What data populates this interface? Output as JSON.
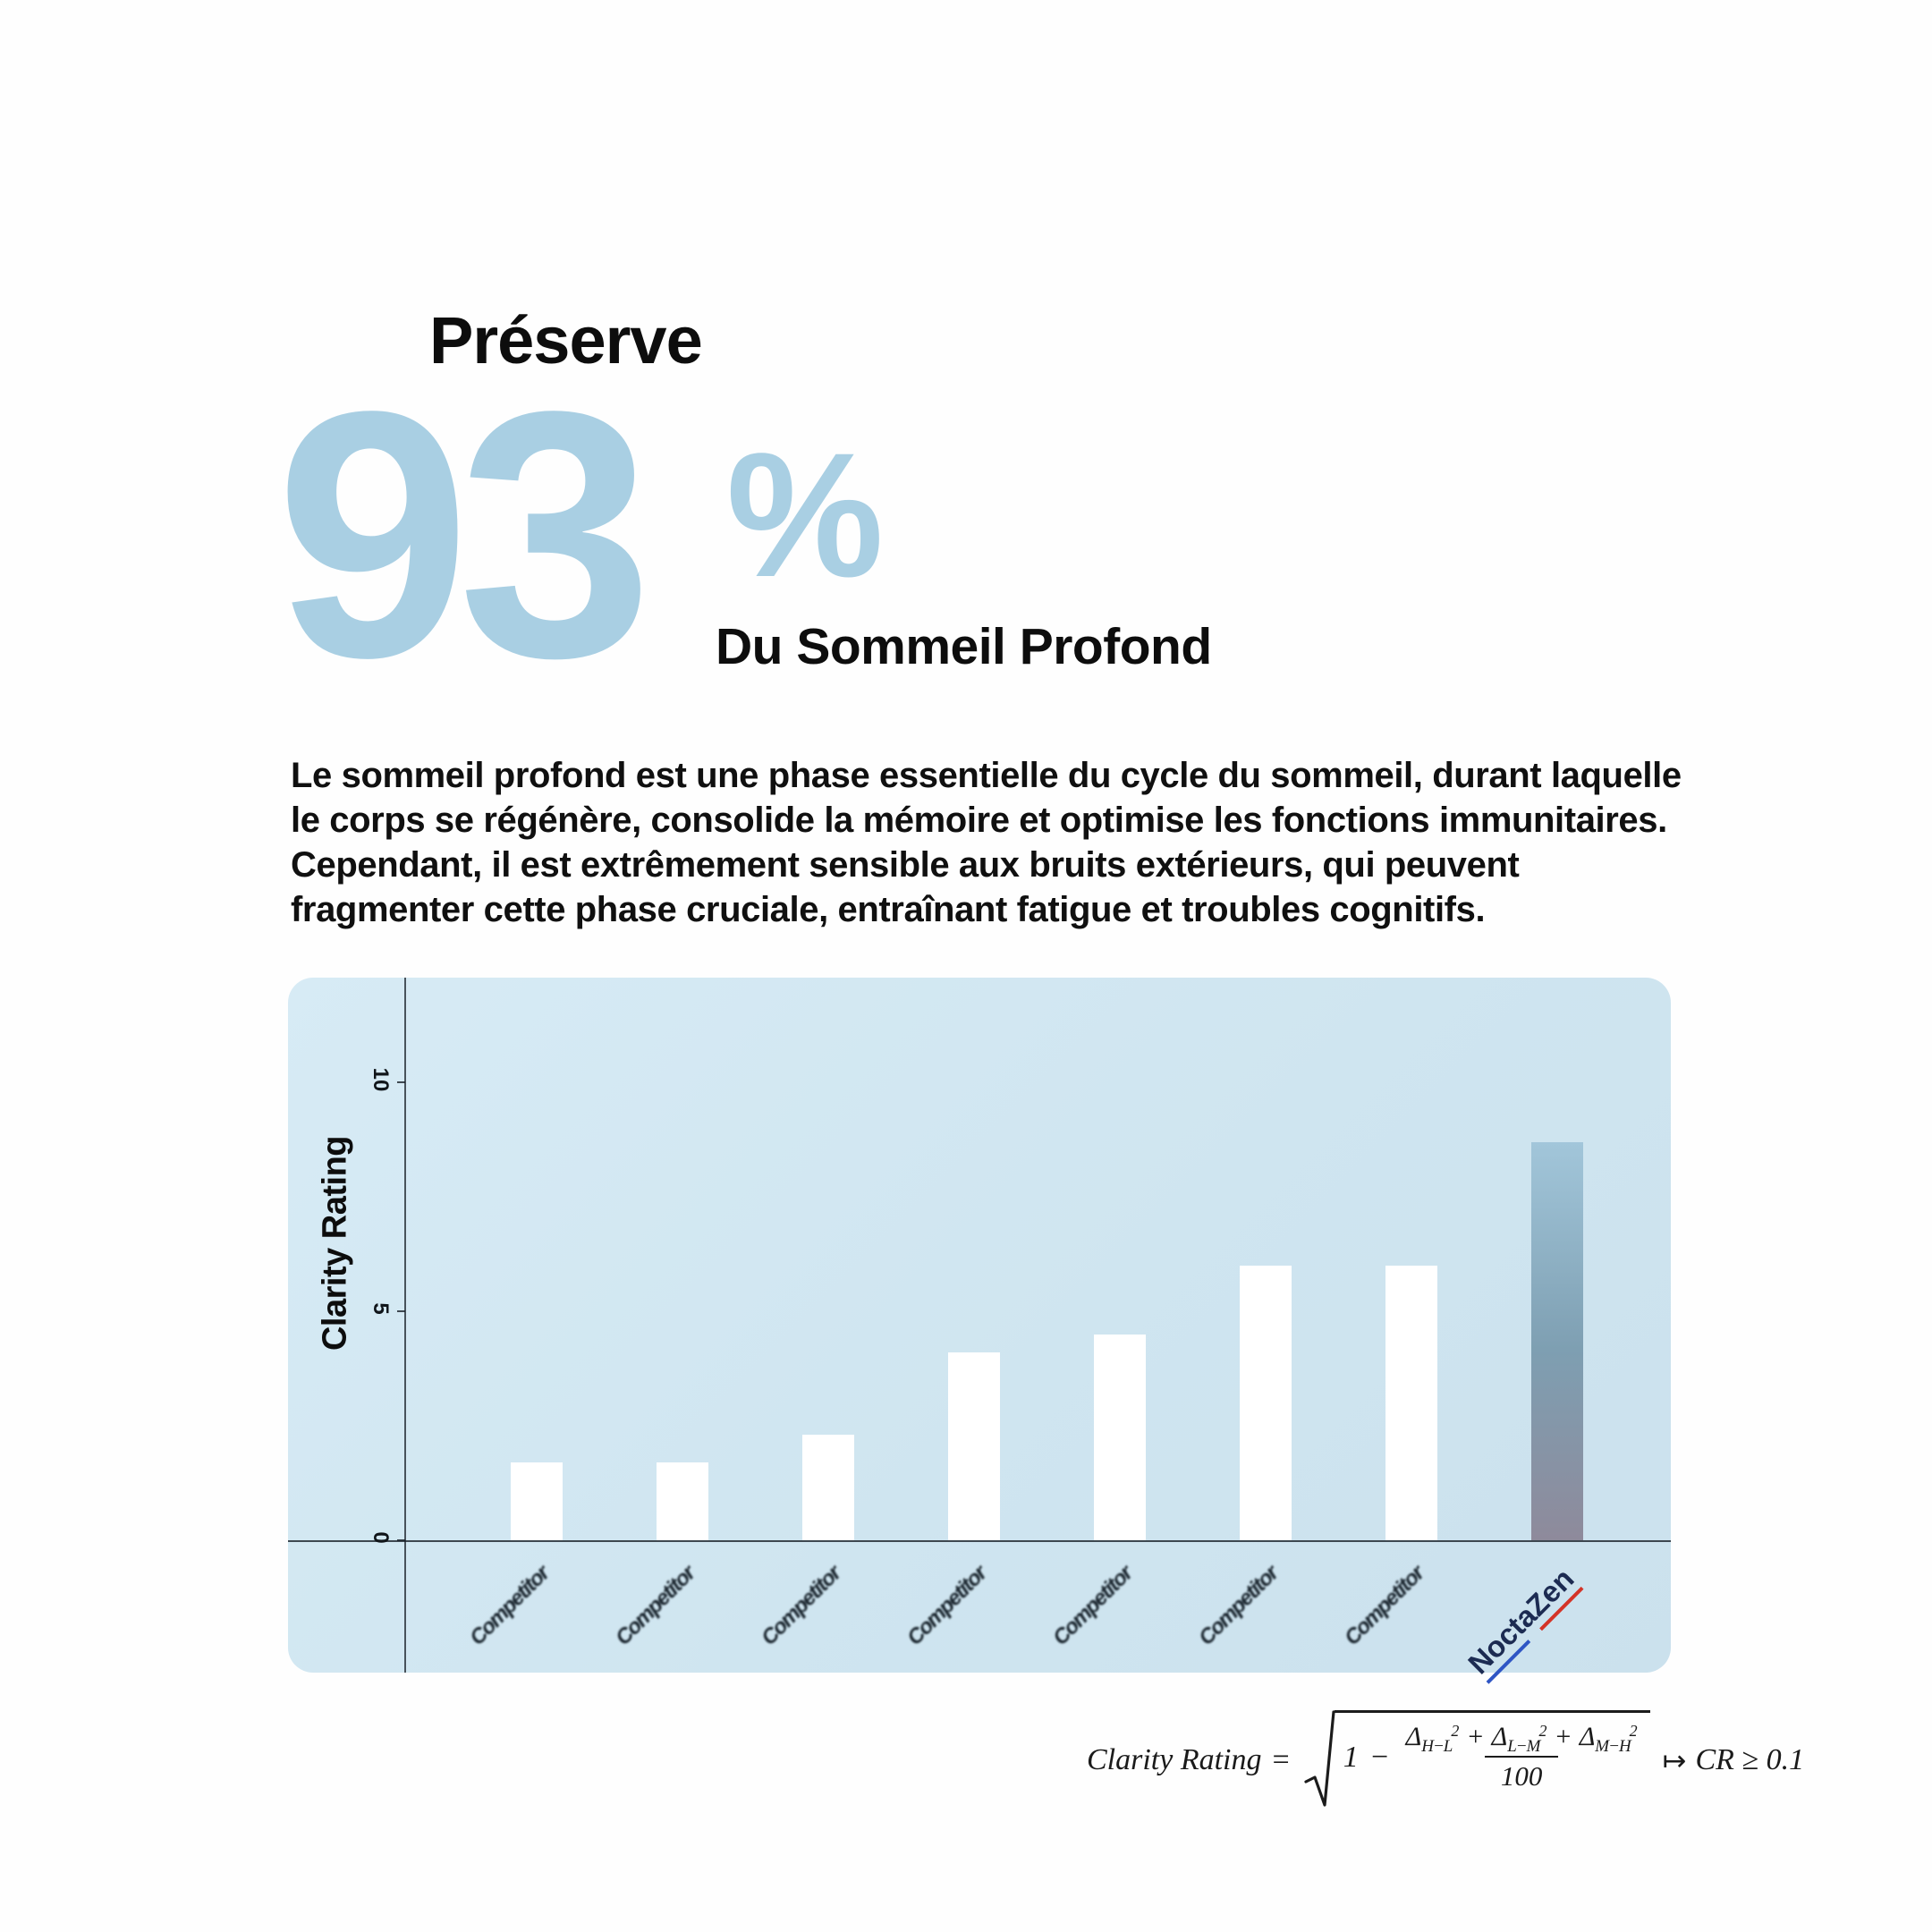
{
  "page": {
    "eyebrow": "Préserve",
    "stat_value": "93",
    "stat_unit": "%",
    "stat_caption": "Du Sommeil Profond",
    "paragraph_lines": [
      "Le sommeil profond est une phase essentielle du cycle du sommeil, durant laquelle",
      "le corps se régénère, consolide la mémoire et optimise les fonctions immunitaires.",
      "Cependant, il est extrêmement sensible aux bruits extérieurs, qui peuvent",
      "fragmenter cette phase cruciale, entraînant fatigue et troubles cognitifs."
    ]
  },
  "chart_data": {
    "type": "bar",
    "title": "",
    "xlabel": "",
    "ylabel": "Clarity Rating",
    "ylim": [
      0,
      10
    ],
    "yticks": [
      0,
      5,
      10
    ],
    "grid": false,
    "legend": "none",
    "categories": [
      "Competitor",
      "Competitor",
      "Competitor",
      "Competitor",
      "Competitor",
      "Competitor",
      "Competitor",
      "NoctaZen"
    ],
    "values": [
      1.7,
      1.7,
      2.3,
      4.1,
      4.5,
      6.0,
      6.0,
      8.7
    ],
    "highlight_index": 7,
    "note": "7 competitor bars white, NoctaZen bar gradient blue-to-mauve, x tick labels rotated 45°, competitor names illegibly blurred"
  },
  "formula": {
    "lhs": "Clarity Rating",
    "equals": "=",
    "one": "1",
    "minus": "−",
    "plus": "+",
    "terms": [
      {
        "base": "Δ",
        "sub": "H−L",
        "sup": "2"
      },
      {
        "base": "Δ",
        "sub": "L−M",
        "sup": "2"
      },
      {
        "base": "Δ",
        "sub": "M−H",
        "sup": "2"
      }
    ],
    "denominator": "100",
    "arrow": "↦",
    "rhs": "CR ≥ 0.1"
  },
  "colors": {
    "accent-blue": "#a9cfe3",
    "panel-bg": "#cfe5f0",
    "bar-white": "#ffffff",
    "highlight-top": "#a2c6da",
    "highlight-mid": "#7e9fb2",
    "highlight-bottom": "#8e8a9b",
    "noctazen-label": "#1c2b52",
    "underline-blue": "#2e55c4",
    "underline-red": "#d43327",
    "text": "#0f0f0f"
  }
}
